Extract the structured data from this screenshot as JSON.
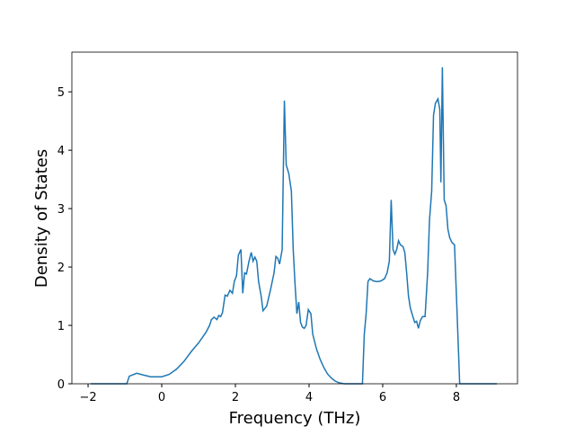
{
  "chart_data": {
    "type": "line",
    "xlabel": "Frequency (THz)",
    "ylabel": "Density of States",
    "xlim": [
      -2.44,
      9.66
    ],
    "ylim": [
      0,
      5.68
    ],
    "xticks": [
      {
        "value": -2,
        "label": "−2"
      },
      0,
      2,
      4,
      6,
      8
    ],
    "yticks": [
      0,
      1,
      2,
      3,
      4,
      5
    ],
    "series": [
      {
        "color": "#1f77b4",
        "x": [
          -1.93,
          -0.95,
          -0.88,
          -0.68,
          -0.5,
          -0.3,
          0,
          0.2,
          0.4,
          0.6,
          0.8,
          1.0,
          1.2,
          1.3,
          1.35,
          1.42,
          1.5,
          1.55,
          1.6,
          1.65,
          1.72,
          1.78,
          1.85,
          1.92,
          1.97,
          2.03,
          2.08,
          2.15,
          2.2,
          2.25,
          2.3,
          2.37,
          2.43,
          2.48,
          2.53,
          2.58,
          2.63,
          2.7,
          2.75,
          2.85,
          2.95,
          3.05,
          3.1,
          3.15,
          3.2,
          3.27,
          3.33,
          3.38,
          3.45,
          3.52,
          3.57,
          3.62,
          3.67,
          3.72,
          3.77,
          3.82,
          3.87,
          3.92,
          3.98,
          4.05,
          4.1,
          4.2,
          4.3,
          4.4,
          4.5,
          4.6,
          4.7,
          4.8,
          4.95,
          5.45,
          5.5,
          5.55,
          5.6,
          5.65,
          5.75,
          5.85,
          5.95,
          6.05,
          6.12,
          6.18,
          6.23,
          6.28,
          6.33,
          6.38,
          6.43,
          6.48,
          6.55,
          6.6,
          6.65,
          6.7,
          6.75,
          6.82,
          6.87,
          6.92,
          6.97,
          7.02,
          7.08,
          7.15,
          7.22,
          7.27,
          7.33,
          7.38,
          7.43,
          7.5,
          7.55,
          7.58,
          7.62,
          7.67,
          7.72,
          7.77,
          7.82,
          7.88,
          7.95,
          8.02,
          8.09,
          9.1
        ],
        "values": [
          0,
          0,
          0.13,
          0.18,
          0.15,
          0.12,
          0.12,
          0.16,
          0.25,
          0.38,
          0.55,
          0.7,
          0.88,
          1.0,
          1.1,
          1.14,
          1.1,
          1.17,
          1.15,
          1.22,
          1.52,
          1.5,
          1.6,
          1.55,
          1.75,
          1.85,
          2.2,
          2.3,
          1.55,
          1.9,
          1.88,
          2.1,
          2.25,
          2.1,
          2.17,
          2.1,
          1.75,
          1.5,
          1.25,
          1.33,
          1.6,
          1.9,
          2.18,
          2.15,
          2.05,
          2.3,
          4.85,
          3.75,
          3.6,
          3.3,
          2.3,
          1.7,
          1.2,
          1.4,
          1.05,
          0.97,
          0.95,
          1.0,
          1.27,
          1.2,
          0.85,
          0.6,
          0.42,
          0.28,
          0.17,
          0.1,
          0.05,
          0.02,
          0,
          0,
          0.85,
          1.2,
          1.75,
          1.8,
          1.76,
          1.75,
          1.76,
          1.8,
          1.9,
          2.1,
          3.15,
          2.3,
          2.22,
          2.3,
          2.45,
          2.38,
          2.35,
          2.25,
          1.9,
          1.5,
          1.3,
          1.15,
          1.05,
          1.07,
          0.95,
          1.08,
          1.15,
          1.15,
          1.9,
          2.8,
          3.3,
          4.6,
          4.8,
          4.88,
          4.7,
          3.45,
          5.42,
          3.15,
          3.05,
          2.65,
          2.5,
          2.42,
          2.38,
          1.2,
          0,
          0
        ]
      }
    ]
  }
}
